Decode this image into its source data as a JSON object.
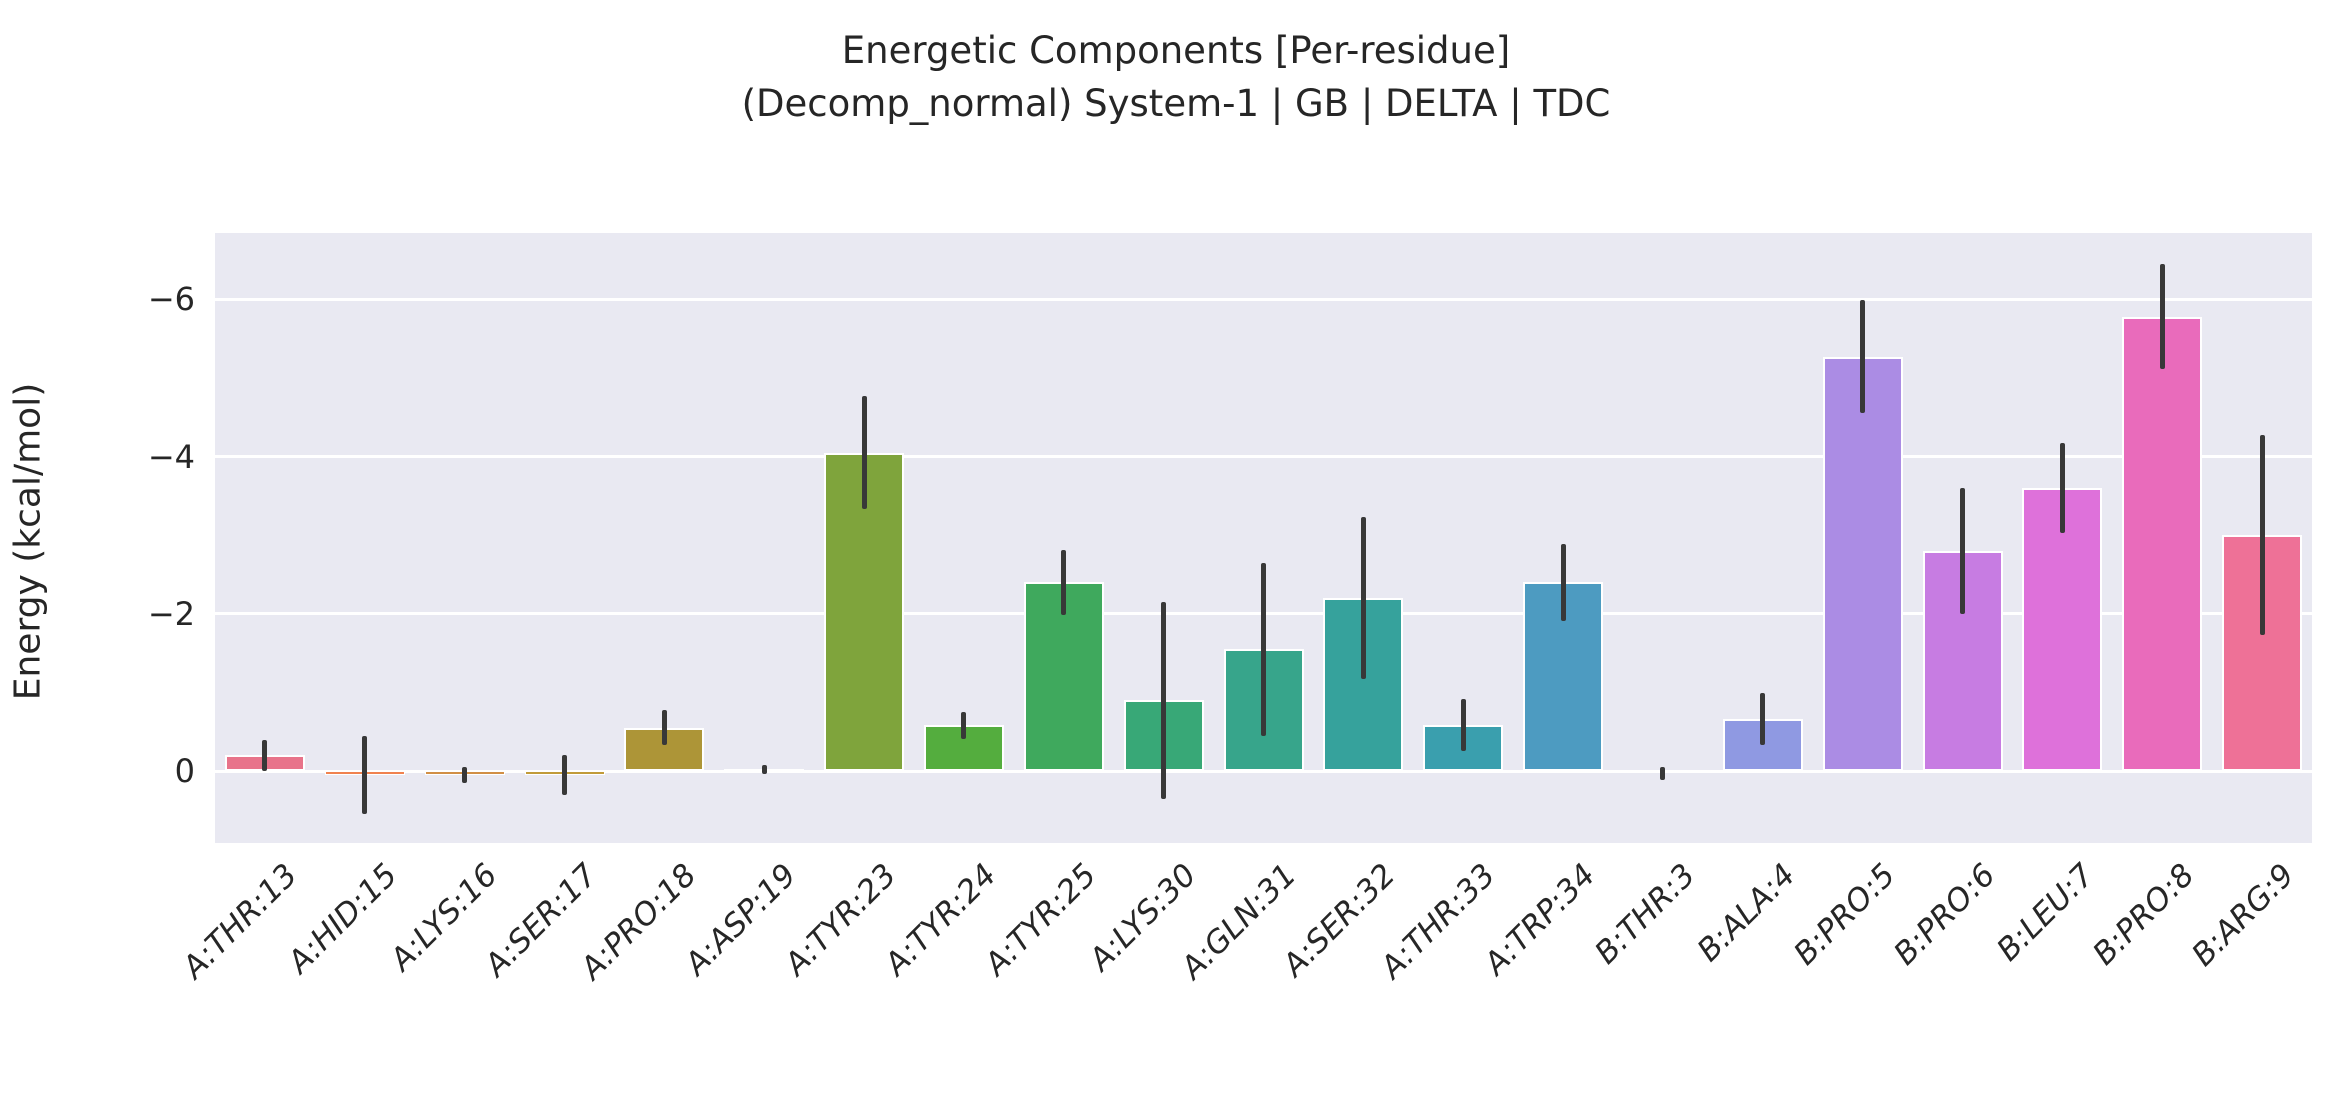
{
  "title": {
    "line1": "Energetic Components [Per-residue]",
    "line2": "(Decomp_normal) System-1 | GB | DELTA | TDC"
  },
  "chart_data": {
    "type": "bar",
    "title": "Energetic Components [Per-residue]\n(Decomp_normal) System-1 | GB | DELTA | TDC",
    "xlabel": "",
    "ylabel": "Energy (kcal/mol)",
    "y_axis_inverted": true,
    "ylim": [
      0.92,
      -6.84
    ],
    "grid": true,
    "legend": "none",
    "plot_bg": "#e9e9f2",
    "gridline_color": "#ffffff",
    "error_bar_color": "#383838",
    "bar_edge_color": "#ffffff",
    "y_ticks": [
      {
        "label": "−6",
        "value": -6
      },
      {
        "label": "−4",
        "value": -4
      },
      {
        "label": "−2",
        "value": -2
      },
      {
        "label": "0",
        "value": 0
      }
    ],
    "categories": [
      "A:THR:13",
      "A:HID:15",
      "A:LYS:16",
      "A:SER:17",
      "A:PRO:18",
      "A:ASP:19",
      "A:TYR:23",
      "A:TYR:24",
      "A:TYR:25",
      "A:LYS:30",
      "A:GLN:31",
      "A:SER:32",
      "A:THR:33",
      "A:TRP:34",
      "B:THR:3",
      "B:ALA:4",
      "B:PRO:5",
      "B:PRO:6",
      "B:LEU:7",
      "B:PRO:8",
      "B:ARG:9"
    ],
    "values": [
      -0.2,
      0.05,
      0.05,
      0.05,
      -0.55,
      -0.02,
      -4.05,
      -0.58,
      -2.4,
      -0.9,
      -1.55,
      -2.2,
      -0.58,
      -2.4,
      0.03,
      -0.66,
      -5.27,
      -2.8,
      -3.6,
      -5.78,
      -3.0
    ],
    "errors": [
      0.2,
      0.5,
      0.1,
      0.25,
      0.22,
      0.06,
      0.72,
      0.17,
      0.41,
      1.25,
      1.1,
      1.03,
      0.33,
      0.49,
      0.08,
      0.33,
      0.72,
      0.8,
      0.57,
      0.67,
      1.27
    ],
    "colors": [
      "#e8738a",
      "#f0824f",
      "#d18f45",
      "#c19b3a",
      "#ad9537",
      "#97a135",
      "#7fa43c",
      "#54ad3e",
      "#3fa95d",
      "#38a877",
      "#37a58b",
      "#36a29c",
      "#3a9fae",
      "#4d9bc1",
      "#7093d8",
      "#8f99e2",
      "#ab8ce4",
      "#c77ce2",
      "#de71da",
      "#e96bbb",
      "#ee7197"
    ]
  }
}
